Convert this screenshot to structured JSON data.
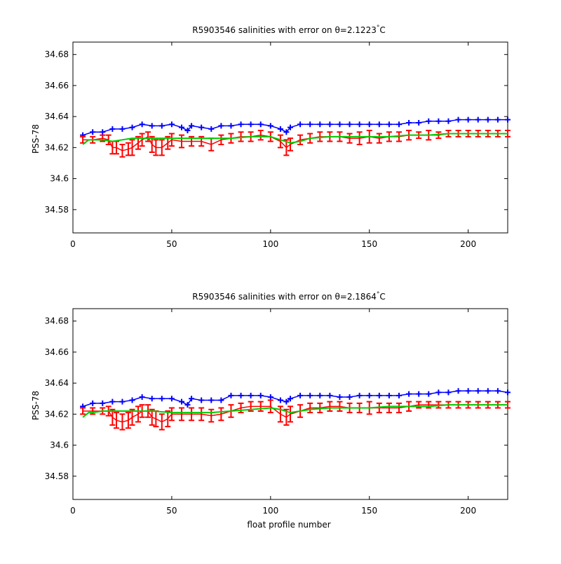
{
  "figure": {
    "xlabel": "float profile number"
  },
  "colors": {
    "blue_series": "#0000ff",
    "red_series": "#ff0000",
    "green_series": "#00cc00"
  },
  "chart_data": [
    {
      "type": "line",
      "title": "R5903546 salinities with error on θ=2.1223°C",
      "title_main": "R5903546 salinities with error on θ=2.1223",
      "title_deg": "°",
      "title_unit": "C",
      "xlabel": "",
      "ylabel": "PSS-78",
      "xlim": [
        0,
        220
      ],
      "ylim": [
        34.565,
        34.688
      ],
      "xticks": [
        0,
        50,
        100,
        150,
        200
      ],
      "yticks": [
        34.58,
        34.6,
        34.62,
        34.64,
        34.66,
        34.68
      ],
      "ytick_labels": [
        "34.58",
        "34.6",
        "34.62",
        "34.64",
        "34.66",
        "34.68"
      ],
      "grid": false,
      "series": [
        {
          "marker": "+",
          "color": "blue",
          "x": [
            5,
            10,
            15,
            20,
            25,
            30,
            35,
            40,
            45,
            50,
            55,
            58,
            60,
            65,
            70,
            75,
            80,
            85,
            90,
            95,
            100,
            105,
            108,
            110,
            115,
            120,
            125,
            130,
            135,
            140,
            145,
            150,
            155,
            160,
            165,
            170,
            175,
            180,
            185,
            190,
            195,
            200,
            205,
            210,
            215,
            220
          ],
          "y": [
            34.628,
            34.63,
            34.63,
            34.632,
            34.632,
            34.633,
            34.635,
            34.634,
            34.634,
            34.635,
            34.633,
            34.631,
            34.634,
            34.633,
            34.632,
            34.634,
            34.634,
            34.635,
            34.635,
            34.635,
            34.634,
            34.632,
            34.63,
            34.633,
            34.635,
            34.635,
            34.635,
            34.635,
            34.635,
            34.635,
            34.635,
            34.635,
            34.635,
            34.635,
            34.635,
            34.636,
            34.636,
            34.637,
            34.637,
            34.637,
            34.638,
            34.638,
            34.638,
            34.638,
            34.638,
            34.638
          ]
        },
        {
          "marker": "errorbar",
          "color": "red",
          "x": [
            5,
            10,
            15,
            18,
            20,
            22,
            25,
            28,
            30,
            33,
            35,
            38,
            40,
            42,
            45,
            48,
            50,
            55,
            60,
            65,
            70,
            75,
            80,
            85,
            90,
            95,
            100,
            105,
            108,
            110,
            115,
            120,
            125,
            130,
            135,
            140,
            145,
            150,
            155,
            160,
            165,
            170,
            175,
            180,
            185,
            190,
            195,
            200,
            205,
            210,
            215,
            220
          ],
          "y": [
            34.625,
            34.625,
            34.626,
            34.625,
            34.62,
            34.62,
            34.618,
            34.619,
            34.62,
            34.623,
            34.625,
            34.627,
            34.622,
            34.62,
            34.62,
            34.623,
            34.625,
            34.624,
            34.624,
            34.624,
            34.622,
            34.625,
            34.626,
            34.627,
            34.627,
            34.628,
            34.627,
            34.624,
            34.62,
            34.622,
            34.625,
            34.626,
            34.627,
            34.627,
            34.627,
            34.626,
            34.626,
            34.627,
            34.626,
            34.627,
            34.627,
            34.628,
            34.628,
            34.628,
            34.628,
            34.629,
            34.629,
            34.629,
            34.629,
            34.629,
            34.629,
            34.629
          ],
          "err": [
            0.002,
            0.002,
            0.002,
            0.003,
            0.004,
            0.004,
            0.004,
            0.004,
            0.005,
            0.004,
            0.004,
            0.003,
            0.005,
            0.005,
            0.005,
            0.004,
            0.004,
            0.004,
            0.003,
            0.003,
            0.004,
            0.003,
            0.003,
            0.003,
            0.003,
            0.003,
            0.003,
            0.004,
            0.005,
            0.004,
            0.003,
            0.003,
            0.003,
            0.003,
            0.003,
            0.003,
            0.004,
            0.004,
            0.003,
            0.003,
            0.003,
            0.003,
            0.002,
            0.003,
            0.002,
            0.002,
            0.002,
            0.002,
            0.002,
            0.002,
            0.002,
            0.002
          ]
        },
        {
          "marker": "line",
          "color": "green",
          "x": [
            5,
            8,
            10,
            15,
            20,
            25,
            30,
            40,
            50,
            60,
            70,
            80,
            90,
            100,
            105,
            110,
            115,
            120,
            130,
            140,
            150,
            160,
            170,
            180,
            190,
            200,
            210,
            220
          ],
          "y": [
            34.622,
            34.625,
            34.625,
            34.625,
            34.624,
            34.625,
            34.626,
            34.626,
            34.626,
            34.626,
            34.626,
            34.626,
            34.627,
            34.627,
            34.625,
            34.623,
            34.624,
            34.626,
            34.627,
            34.627,
            34.627,
            34.627,
            34.628,
            34.628,
            34.629,
            34.629,
            34.629,
            34.629
          ]
        }
      ]
    },
    {
      "type": "line",
      "title": "R5903546 salinities with error on θ=2.1864°C",
      "title_main": "R5903546 salinities with error on θ=2.1864",
      "title_deg": "°",
      "title_unit": "C",
      "xlabel": "float profile number",
      "ylabel": "PSS-78",
      "xlim": [
        0,
        220
      ],
      "ylim": [
        34.565,
        34.688
      ],
      "xticks": [
        0,
        50,
        100,
        150,
        200
      ],
      "yticks": [
        34.58,
        34.6,
        34.62,
        34.64,
        34.66,
        34.68
      ],
      "ytick_labels": [
        "34.58",
        "34.6",
        "34.62",
        "34.64",
        "34.66",
        "34.68"
      ],
      "grid": false,
      "series": [
        {
          "marker": "+",
          "color": "blue",
          "x": [
            5,
            10,
            15,
            20,
            25,
            30,
            35,
            40,
            45,
            50,
            55,
            58,
            60,
            65,
            70,
            75,
            80,
            85,
            90,
            95,
            100,
            105,
            108,
            110,
            115,
            120,
            125,
            130,
            135,
            140,
            145,
            150,
            155,
            160,
            165,
            170,
            175,
            180,
            185,
            190,
            195,
            200,
            205,
            210,
            215,
            220
          ],
          "y": [
            34.625,
            34.627,
            34.627,
            34.628,
            34.628,
            34.629,
            34.631,
            34.63,
            34.63,
            34.63,
            34.628,
            34.626,
            34.63,
            34.629,
            34.629,
            34.629,
            34.632,
            34.632,
            34.632,
            34.632,
            34.631,
            34.629,
            34.628,
            34.63,
            34.632,
            34.632,
            34.632,
            34.632,
            34.631,
            34.631,
            34.632,
            34.632,
            34.632,
            34.632,
            34.632,
            34.633,
            34.633,
            34.633,
            34.634,
            34.634,
            34.635,
            34.635,
            34.635,
            34.635,
            34.635,
            34.634
          ]
        },
        {
          "marker": "errorbar",
          "color": "red",
          "x": [
            5,
            10,
            15,
            18,
            20,
            22,
            25,
            28,
            30,
            33,
            35,
            38,
            40,
            42,
            45,
            48,
            50,
            55,
            60,
            65,
            70,
            75,
            80,
            85,
            90,
            95,
            100,
            105,
            108,
            110,
            115,
            120,
            125,
            130,
            135,
            140,
            145,
            150,
            155,
            160,
            165,
            170,
            175,
            180,
            185,
            190,
            195,
            200,
            205,
            210,
            215,
            220
          ],
          "y": [
            34.622,
            34.622,
            34.622,
            34.622,
            34.618,
            34.616,
            34.615,
            34.616,
            34.618,
            34.62,
            34.622,
            34.622,
            34.618,
            34.617,
            34.615,
            34.617,
            34.62,
            34.62,
            34.62,
            34.62,
            34.619,
            34.62,
            34.622,
            34.624,
            34.625,
            34.625,
            34.625,
            34.62,
            34.618,
            34.62,
            34.622,
            34.624,
            34.624,
            34.625,
            34.625,
            34.624,
            34.624,
            34.624,
            34.624,
            34.624,
            34.624,
            34.625,
            34.626,
            34.626,
            34.626,
            34.626,
            34.626,
            34.626,
            34.626,
            34.626,
            34.626,
            34.626
          ],
          "err": [
            0.002,
            0.002,
            0.002,
            0.003,
            0.005,
            0.005,
            0.005,
            0.005,
            0.005,
            0.005,
            0.004,
            0.004,
            0.005,
            0.005,
            0.005,
            0.005,
            0.004,
            0.004,
            0.004,
            0.004,
            0.004,
            0.004,
            0.004,
            0.003,
            0.003,
            0.003,
            0.004,
            0.005,
            0.005,
            0.005,
            0.004,
            0.003,
            0.003,
            0.003,
            0.003,
            0.003,
            0.003,
            0.004,
            0.003,
            0.003,
            0.003,
            0.003,
            0.002,
            0.002,
            0.002,
            0.002,
            0.002,
            0.002,
            0.002,
            0.002,
            0.002,
            0.002
          ]
        },
        {
          "marker": "line",
          "color": "green",
          "x": [
            5,
            8,
            10,
            15,
            20,
            25,
            30,
            40,
            50,
            60,
            70,
            80,
            90,
            100,
            105,
            110,
            115,
            120,
            130,
            140,
            150,
            160,
            170,
            180,
            190,
            200,
            210,
            220
          ],
          "y": [
            34.618,
            34.621,
            34.621,
            34.622,
            34.622,
            34.622,
            34.622,
            34.622,
            34.621,
            34.621,
            34.621,
            34.622,
            34.623,
            34.624,
            34.623,
            34.621,
            34.622,
            34.623,
            34.624,
            34.624,
            34.624,
            34.625,
            34.625,
            34.625,
            34.626,
            34.626,
            34.626,
            34.626
          ]
        }
      ]
    }
  ]
}
